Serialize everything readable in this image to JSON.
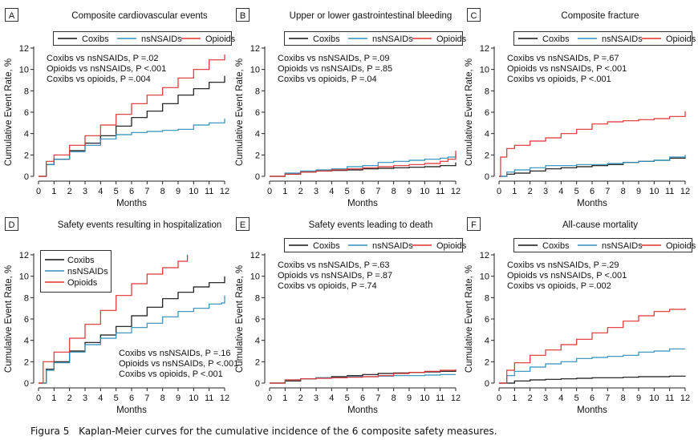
{
  "caption": {
    "label": "Figura 5",
    "text": "Kaplan-Meier curves for the cumulative incidence of the 6 composite safety measures."
  },
  "colors": {
    "Coxibs": "#111111",
    "nsNSAIDs": "#2f8fb8",
    "Opioids": "#e03030"
  },
  "chart_data": [
    {
      "type": "line",
      "letter": "A",
      "title": "Composite cardiovascular events",
      "xlabel": "Months",
      "ylabel": "Cumulative Event Rate, %",
      "xlim": [
        0,
        12
      ],
      "ylim": [
        0,
        12
      ],
      "xticks": [
        0,
        1,
        2,
        3,
        4,
        5,
        6,
        7,
        8,
        9,
        10,
        11,
        12
      ],
      "yticks": [
        0,
        2,
        4,
        6,
        8,
        10,
        12
      ],
      "legend": {
        "placement": "top",
        "layout": "horizontal"
      },
      "stats": [
        "Coxibs vs nsNSAIDs, P =.02",
        "Opioids vs nsNSAIDs, P <.001",
        "Coxibs vs opioids, P =.004"
      ],
      "stats_placement": "top-left",
      "series": [
        {
          "name": "Coxibs",
          "x": [
            0,
            0.5,
            1,
            2,
            3,
            4,
            5,
            6,
            7,
            8,
            9,
            10,
            11,
            12
          ],
          "y": [
            0,
            1.1,
            1.6,
            2.4,
            3.1,
            3.8,
            4.7,
            5.5,
            6.1,
            6.8,
            7.6,
            8.2,
            8.8,
            9.4
          ]
        },
        {
          "name": "nsNSAIDs",
          "x": [
            0,
            0.5,
            1,
            2,
            3,
            4,
            5,
            6,
            7,
            8,
            9,
            10,
            11,
            12
          ],
          "y": [
            0,
            1.1,
            1.6,
            2.3,
            2.9,
            3.5,
            3.9,
            4.1,
            4.2,
            4.3,
            4.4,
            4.8,
            5.0,
            5.4
          ]
        },
        {
          "name": "Opioids",
          "x": [
            0,
            0.5,
            1,
            2,
            3,
            4,
            5,
            6,
            7,
            8,
            9,
            10,
            11,
            12
          ],
          "y": [
            0,
            1.4,
            2.0,
            2.9,
            3.8,
            4.8,
            5.8,
            6.8,
            7.6,
            8.3,
            9.2,
            10.0,
            10.9,
            11.4
          ]
        }
      ]
    },
    {
      "type": "line",
      "letter": "B",
      "title": "Upper or lower gastrointestinal bleeding",
      "xlabel": "Months",
      "ylabel": "Cumulative Event Rate, %",
      "xlim": [
        0,
        12
      ],
      "ylim": [
        0,
        12
      ],
      "xticks": [
        0,
        1,
        2,
        3,
        4,
        5,
        6,
        7,
        8,
        9,
        10,
        11,
        12
      ],
      "yticks": [
        0,
        2,
        4,
        6,
        8,
        10,
        12
      ],
      "legend": {
        "placement": "top",
        "layout": "horizontal"
      },
      "stats": [
        "Coxibs vs nsNSAIDs, P =.09",
        "Opioids vs nsNSAIDs, P =.85",
        "Coxibs vs opioids, P =.04"
      ],
      "stats_placement": "top-left",
      "series": [
        {
          "name": "Coxibs",
          "x": [
            0,
            1,
            2,
            3,
            4,
            5,
            6,
            7,
            8,
            9,
            10,
            11,
            12
          ],
          "y": [
            0,
            0.2,
            0.4,
            0.5,
            0.55,
            0.6,
            0.7,
            0.75,
            0.8,
            0.85,
            0.9,
            1.0,
            1.3
          ]
        },
        {
          "name": "nsNSAIDs",
          "x": [
            0,
            1,
            2,
            3,
            4,
            5,
            6,
            7,
            8,
            9,
            10,
            11,
            11.5,
            12
          ],
          "y": [
            0,
            0.3,
            0.5,
            0.6,
            0.7,
            0.9,
            1.0,
            1.3,
            1.4,
            1.5,
            1.6,
            1.7,
            1.8,
            2.1
          ]
        },
        {
          "name": "Opioids",
          "x": [
            0,
            1,
            2,
            3,
            4,
            5,
            6,
            7,
            8,
            9,
            10,
            11,
            11.5,
            12
          ],
          "y": [
            0,
            0.2,
            0.4,
            0.5,
            0.6,
            0.7,
            0.8,
            0.9,
            1.0,
            1.1,
            1.2,
            1.4,
            1.6,
            2.4
          ]
        }
      ]
    },
    {
      "type": "line",
      "letter": "C",
      "title": "Composite fracture",
      "xlabel": "Months",
      "ylabel": "Cumulative Event Rate, %",
      "xlim": [
        0,
        12
      ],
      "ylim": [
        0,
        12
      ],
      "xticks": [
        0,
        1,
        2,
        3,
        4,
        5,
        6,
        7,
        8,
        9,
        10,
        11,
        12
      ],
      "yticks": [
        0,
        2,
        4,
        6,
        8,
        10,
        12
      ],
      "legend": {
        "placement": "top",
        "layout": "horizontal"
      },
      "stats": [
        "Coxibs vs nsNSAIDs, P =.67",
        "Opioids vs nsNSAIDs, P <.001",
        "Coxibs vs opioids, P <.001"
      ],
      "stats_placement": "top-left",
      "series": [
        {
          "name": "Coxibs",
          "x": [
            0,
            0.5,
            1,
            2,
            3,
            4,
            5,
            6,
            7,
            8,
            9,
            10,
            11,
            12
          ],
          "y": [
            0,
            0.2,
            0.3,
            0.5,
            0.7,
            0.8,
            0.9,
            1.0,
            1.1,
            1.3,
            1.4,
            1.5,
            1.7,
            1.9
          ]
        },
        {
          "name": "nsNSAIDs",
          "x": [
            0,
            0.5,
            1,
            2,
            3,
            4,
            5,
            6,
            7,
            8,
            9,
            10,
            11,
            12
          ],
          "y": [
            0,
            0.4,
            0.6,
            0.8,
            1.0,
            1.0,
            1.1,
            1.1,
            1.2,
            1.3,
            1.4,
            1.5,
            1.8,
            2.0
          ]
        },
        {
          "name": "Opioids",
          "x": [
            0,
            0.1,
            0.5,
            1,
            2,
            3,
            4,
            5,
            6,
            7,
            8,
            9,
            10,
            11,
            12
          ],
          "y": [
            0,
            1.8,
            2.6,
            2.9,
            3.3,
            3.6,
            4.0,
            4.4,
            4.9,
            5.1,
            5.2,
            5.3,
            5.4,
            5.6,
            6.1
          ]
        }
      ]
    },
    {
      "type": "line",
      "letter": "D",
      "title": "Safety events resulting in hospitalization",
      "xlabel": "Months",
      "ylabel": "Cumulative Event Rate, %",
      "xlim": [
        0,
        12
      ],
      "ylim": [
        0,
        12
      ],
      "xticks": [
        0,
        1,
        2,
        3,
        4,
        5,
        6,
        7,
        8,
        9,
        10,
        11,
        12
      ],
      "yticks": [
        0,
        2,
        4,
        6,
        8,
        10,
        12
      ],
      "legend": {
        "placement": "top-left",
        "layout": "vertical"
      },
      "stats": [
        "Coxibs vs nsNSAIDs, P =.16",
        "Opioids vs nsNSAIDs, P <.001",
        "Coxibs vs opioids, P <.001"
      ],
      "stats_placement": "bottom-right",
      "series": [
        {
          "name": "Coxibs",
          "x": [
            0,
            0.5,
            1,
            2,
            3,
            4,
            5,
            6,
            7,
            8,
            9,
            10,
            11,
            12
          ],
          "y": [
            0,
            1.3,
            2.0,
            3.0,
            3.8,
            4.5,
            5.3,
            6.3,
            7.1,
            7.9,
            8.5,
            9.0,
            9.4,
            10.0
          ]
        },
        {
          "name": "nsNSAIDs",
          "x": [
            0,
            0.5,
            1,
            2,
            3,
            4,
            5,
            6,
            7,
            8,
            9,
            10,
            11,
            11.8,
            12
          ],
          "y": [
            0,
            1.2,
            1.9,
            2.9,
            3.6,
            4.2,
            4.7,
            5.2,
            5.6,
            6.2,
            6.7,
            7.0,
            7.4,
            7.5,
            8.2
          ]
        },
        {
          "name": "Opioids",
          "x": [
            0,
            0.3,
            1,
            2,
            3,
            4,
            5,
            6,
            7,
            8,
            9,
            9.6
          ],
          "y": [
            0,
            2.0,
            2.9,
            4.2,
            5.5,
            6.8,
            8.2,
            9.3,
            10.2,
            10.8,
            11.4,
            12.0
          ]
        }
      ]
    },
    {
      "type": "line",
      "letter": "E",
      "title": "Safety events leading to death",
      "xlabel": "Months",
      "ylabel": "Cumulative Event Rate, %",
      "xlim": [
        0,
        12
      ],
      "ylim": [
        0,
        12
      ],
      "xticks": [
        0,
        1,
        2,
        3,
        4,
        5,
        6,
        7,
        8,
        9,
        10,
        11,
        12
      ],
      "yticks": [
        0,
        2,
        4,
        6,
        8,
        10,
        12
      ],
      "legend": {
        "placement": "top",
        "layout": "horizontal"
      },
      "stats": [
        "Coxibs vs nsNSAIDs, P =.63",
        "Opioids vs nsNSAIDs, P =.87",
        "Coxibs vs opioids, P =.74"
      ],
      "stats_placement": "top-left",
      "series": [
        {
          "name": "Coxibs",
          "x": [
            0,
            1,
            2,
            3,
            4,
            5,
            6,
            7,
            8,
            9,
            10,
            11,
            12
          ],
          "y": [
            0,
            0.2,
            0.4,
            0.5,
            0.6,
            0.7,
            0.8,
            0.9,
            0.95,
            1.0,
            1.05,
            1.1,
            1.2
          ]
        },
        {
          "name": "nsNSAIDs",
          "x": [
            0,
            1,
            2,
            3,
            4,
            5,
            6,
            7,
            8,
            9,
            10,
            11,
            12
          ],
          "y": [
            0,
            0.3,
            0.4,
            0.5,
            0.5,
            0.6,
            0.6,
            0.65,
            0.7,
            0.7,
            0.75,
            0.8,
            0.8
          ]
        },
        {
          "name": "Opioids",
          "x": [
            0,
            1,
            2,
            3,
            4,
            5,
            6,
            7,
            8,
            9,
            10,
            11,
            12
          ],
          "y": [
            0,
            0.3,
            0.4,
            0.45,
            0.5,
            0.55,
            0.6,
            0.7,
            0.9,
            1.0,
            1.1,
            1.2,
            1.3
          ]
        }
      ]
    },
    {
      "type": "line",
      "letter": "F",
      "title": "All-cause mortality",
      "xlabel": "Months",
      "ylabel": "Cumulative Event Rate, %",
      "xlim": [
        0,
        12
      ],
      "ylim": [
        0,
        12
      ],
      "xticks": [
        0,
        1,
        2,
        3,
        4,
        5,
        6,
        7,
        8,
        9,
        10,
        11,
        12
      ],
      "yticks": [
        0,
        2,
        4,
        6,
        8,
        10,
        12
      ],
      "legend": {
        "placement": "top",
        "layout": "horizontal"
      },
      "stats": [
        "Coxibs vs nsNSAIDs, P =.29",
        "Opioids vs nsNSAIDs, P <.001",
        "Coxibs vs opioids, P =.002"
      ],
      "stats_placement": "top-left",
      "series": [
        {
          "name": "Coxibs",
          "x": [
            0,
            1,
            2,
            3,
            4,
            5,
            6,
            7,
            8,
            9,
            10,
            11,
            12
          ],
          "y": [
            0,
            0.2,
            0.3,
            0.35,
            0.4,
            0.45,
            0.5,
            0.5,
            0.55,
            0.6,
            0.6,
            0.65,
            0.7
          ]
        },
        {
          "name": "nsNSAIDs",
          "x": [
            0,
            0.5,
            1,
            2,
            3,
            4,
            5,
            6,
            7,
            8,
            9,
            10,
            11,
            12
          ],
          "y": [
            0,
            0.7,
            1.1,
            1.5,
            1.8,
            2.0,
            2.3,
            2.4,
            2.5,
            2.6,
            2.9,
            3.0,
            3.2,
            3.2
          ]
        },
        {
          "name": "Opioids",
          "x": [
            0,
            0.5,
            1,
            2,
            3,
            4,
            5,
            6,
            7,
            8,
            9,
            10,
            11,
            12
          ],
          "y": [
            0,
            1.2,
            1.9,
            2.6,
            3.1,
            3.6,
            4.1,
            4.7,
            5.2,
            5.8,
            6.3,
            6.7,
            6.9,
            7.0
          ]
        }
      ]
    }
  ]
}
